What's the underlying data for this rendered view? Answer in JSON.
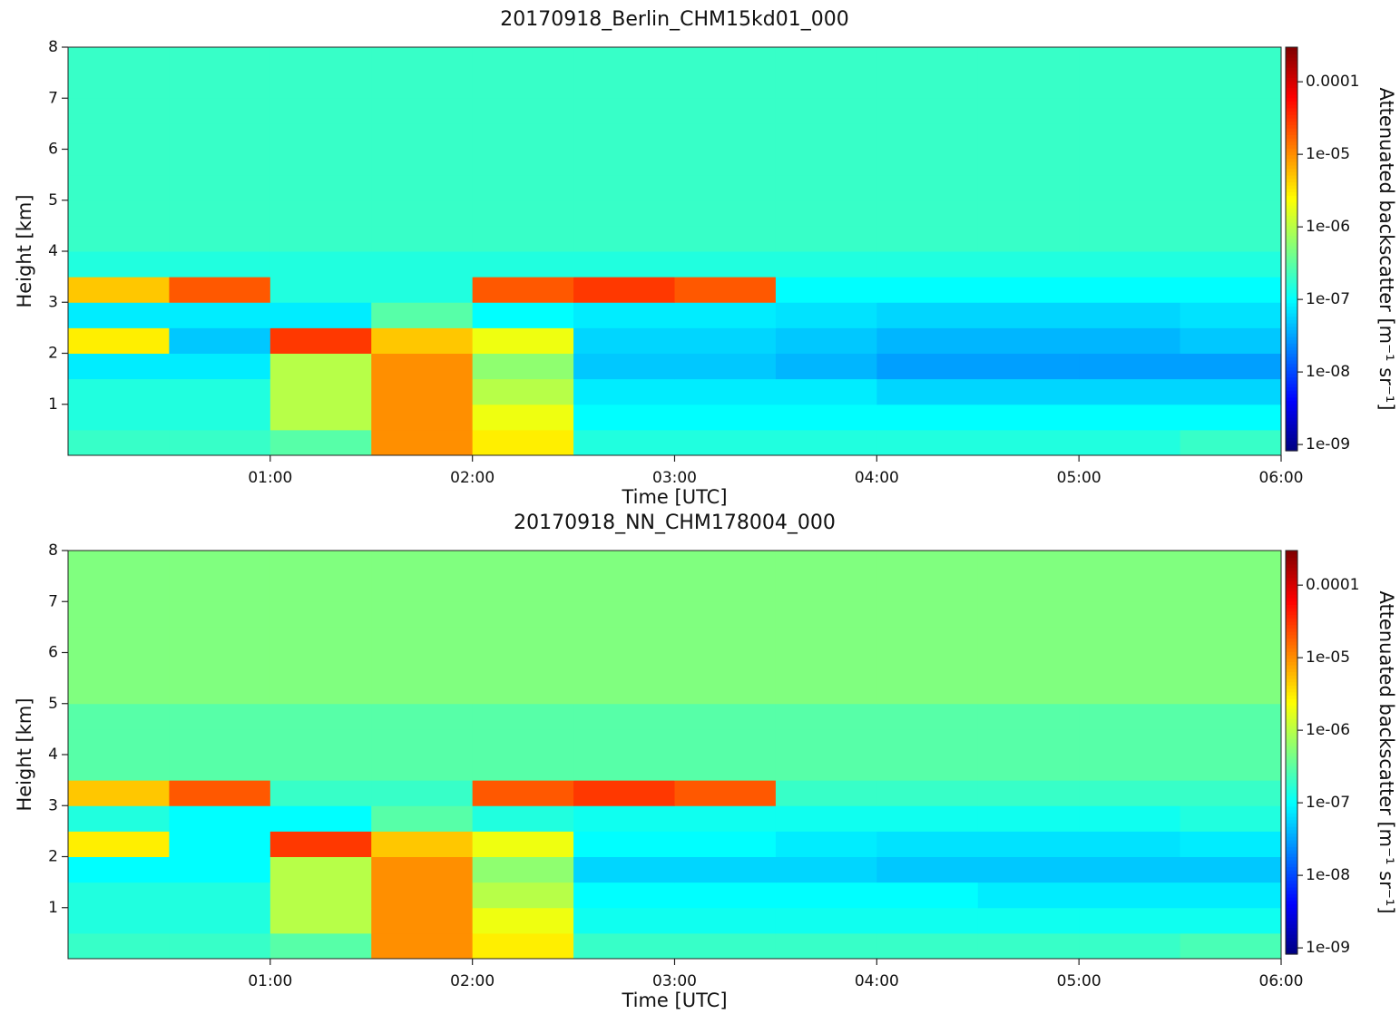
{
  "chart_data": [
    {
      "type": "heatmap",
      "title": "20170918_Berlin_CHM15kd01_000",
      "xlabel": "Time [UTC]",
      "ylabel": "Height [km]",
      "colorbar_label": "Attenuated backscatter [m⁻¹ sr⁻¹]",
      "colormap": "jet",
      "color_scale": "log",
      "xbins": [
        0,
        0.5,
        1,
        1.5,
        2,
        2.5,
        3,
        3.5,
        4,
        4.5,
        5,
        5.5,
        6
      ],
      "ybins": [
        0,
        0.5,
        1,
        1.5,
        2,
        2.5,
        3,
        3.5,
        4,
        4.5,
        5,
        5.5,
        6,
        6.5,
        7,
        7.5,
        8
      ],
      "values": [
        [
          2e-07,
          2e-07,
          3e-07,
          1e-05,
          3e-06,
          1.5e-07,
          1.5e-07,
          1.5e-07,
          1.5e-07,
          1.5e-07,
          1.5e-07,
          2e-07
        ],
        [
          1.5e-07,
          1.5e-07,
          1e-06,
          1e-05,
          2e-06,
          1e-07,
          1e-07,
          1e-07,
          1e-07,
          1e-07,
          1e-07,
          1e-07
        ],
        [
          1.5e-07,
          1.5e-07,
          1e-06,
          1e-05,
          1e-06,
          8e-08,
          8e-08,
          8e-08,
          6e-08,
          6e-08,
          6e-08,
          6e-08
        ],
        [
          8e-08,
          8e-08,
          1e-06,
          1e-05,
          6e-07,
          5e-08,
          5e-08,
          4e-08,
          3e-08,
          3e-08,
          3e-08,
          3e-08
        ],
        [
          3e-06,
          5e-08,
          3e-05,
          5e-06,
          2e-06,
          6e-08,
          6e-08,
          5e-08,
          4e-08,
          4e-08,
          4e-08,
          5e-08
        ],
        [
          8e-08,
          8e-08,
          8e-08,
          3e-07,
          1e-07,
          8e-08,
          8e-08,
          7e-08,
          6e-08,
          6e-08,
          6e-08,
          7e-08
        ],
        [
          5e-06,
          2e-05,
          1.5e-07,
          1.5e-07,
          2e-05,
          3e-05,
          2e-05,
          1e-07,
          1e-07,
          1e-07,
          1e-07,
          1e-07
        ],
        [
          1.5e-07,
          1.5e-07,
          1.5e-07,
          1.5e-07,
          1.5e-07,
          1.5e-07,
          1.5e-07,
          1.5e-07,
          1.5e-07,
          1.5e-07,
          1.5e-07,
          1.5e-07
        ],
        [
          2e-07,
          2e-07,
          2e-07,
          2e-07,
          2e-07,
          2e-07,
          2e-07,
          2e-07,
          2e-07,
          2e-07,
          2e-07,
          2e-07
        ],
        [
          2e-07,
          2e-07,
          2e-07,
          2e-07,
          2e-07,
          2e-07,
          2e-07,
          2e-07,
          2e-07,
          2e-07,
          2e-07,
          2e-07
        ],
        [
          2e-07,
          2e-07,
          2e-07,
          2e-07,
          2e-07,
          2e-07,
          2e-07,
          2e-07,
          2e-07,
          2e-07,
          2e-07,
          2e-07
        ],
        [
          2e-07,
          2e-07,
          2e-07,
          2e-07,
          2e-07,
          2e-07,
          2e-07,
          2e-07,
          2e-07,
          2e-07,
          2e-07,
          2e-07
        ],
        [
          2e-07,
          2e-07,
          2e-07,
          2e-07,
          2e-07,
          2e-07,
          2e-07,
          2e-07,
          2e-07,
          2e-07,
          2e-07,
          2e-07
        ],
        [
          2e-07,
          2e-07,
          2e-07,
          2e-07,
          2e-07,
          2e-07,
          2e-07,
          2e-07,
          2e-07,
          2e-07,
          2e-07,
          2e-07
        ],
        [
          2e-07,
          2e-07,
          2e-07,
          2e-07,
          2e-07,
          2e-07,
          2e-07,
          2e-07,
          2e-07,
          2e-07,
          2e-07,
          2e-07
        ],
        [
          2e-07,
          2e-07,
          2e-07,
          2e-07,
          2e-07,
          2e-07,
          2e-07,
          2e-07,
          2e-07,
          2e-07,
          2e-07,
          2e-07
        ]
      ],
      "xlim": [
        0,
        6
      ],
      "ylim": [
        0,
        8
      ],
      "xticks": [
        {
          "value": 1,
          "label": "01:00"
        },
        {
          "value": 2,
          "label": "02:00"
        },
        {
          "value": 3,
          "label": "03:00"
        },
        {
          "value": 4,
          "label": "04:00"
        },
        {
          "value": 5,
          "label": "05:00"
        },
        {
          "value": 6,
          "label": "06:00"
        }
      ],
      "yticks": [
        1,
        2,
        3,
        4,
        5,
        6,
        7,
        8
      ],
      "clim": [
        8.2e-10,
        0.0003
      ],
      "cticks": [
        0.0001,
        {
          "value": 1e-05,
          "label": "1e-05"
        },
        {
          "value": 1e-06,
          "label": "1e-06"
        },
        {
          "value": 1e-07,
          "label": "1e-07"
        },
        {
          "value": 1e-08,
          "label": "1e-08"
        },
        {
          "value": 1e-09,
          "label": "1e-09"
        }
      ]
    },
    {
      "type": "heatmap",
      "title": "20170918_NN_CHM178004_000",
      "xlabel": "Time [UTC]",
      "ylabel": "Height [km]",
      "colorbar_label": "Attenuated backscatter [m⁻¹ sr⁻¹]",
      "colormap": "jet",
      "color_scale": "log",
      "xbins": [
        0,
        0.5,
        1,
        1.5,
        2,
        2.5,
        3,
        3.5,
        4,
        4.5,
        5,
        5.5,
        6
      ],
      "ybins": [
        0,
        0.5,
        1,
        1.5,
        2,
        2.5,
        3,
        3.5,
        4,
        4.5,
        5,
        5.5,
        6,
        6.5,
        7,
        7.5,
        8
      ],
      "values": [
        [
          2e-07,
          2e-07,
          3e-07,
          1e-05,
          3e-06,
          2e-07,
          2e-07,
          2e-07,
          2e-07,
          2e-07,
          2e-07,
          2.5e-07
        ],
        [
          1.5e-07,
          1.5e-07,
          1e-06,
          1e-05,
          2e-06,
          1.2e-07,
          1.2e-07,
          1.2e-07,
          1.2e-07,
          1.2e-07,
          1.2e-07,
          1.2e-07
        ],
        [
          1.5e-07,
          1.5e-07,
          1e-06,
          1e-05,
          1e-06,
          1e-07,
          1e-07,
          1e-07,
          1e-07,
          8e-08,
          8e-08,
          8e-08
        ],
        [
          1e-07,
          1e-07,
          1e-06,
          1e-05,
          6e-07,
          6e-08,
          6e-08,
          6e-08,
          5e-08,
          5e-08,
          5e-08,
          5e-08
        ],
        [
          3e-06,
          1e-07,
          3e-05,
          5e-06,
          2e-06,
          1e-07,
          1e-07,
          8e-08,
          7e-08,
          7e-08,
          7e-08,
          8e-08
        ],
        [
          1.5e-07,
          1e-07,
          1e-07,
          3e-07,
          1.5e-07,
          1.2e-07,
          1.2e-07,
          1.2e-07,
          1.2e-07,
          1.2e-07,
          1.2e-07,
          1.5e-07
        ],
        [
          5e-06,
          2e-05,
          2e-07,
          2e-07,
          2e-05,
          3e-05,
          2e-05,
          2e-07,
          2e-07,
          2e-07,
          2e-07,
          2e-07
        ],
        [
          3e-07,
          3e-07,
          3e-07,
          3e-07,
          3e-07,
          3e-07,
          3e-07,
          3e-07,
          3e-07,
          3e-07,
          3e-07,
          3e-07
        ],
        [
          3e-07,
          3e-07,
          3e-07,
          3e-07,
          3e-07,
          3e-07,
          3e-07,
          3e-07,
          3e-07,
          3e-07,
          3e-07,
          3e-07
        ],
        [
          3e-07,
          3e-07,
          3e-07,
          3e-07,
          3e-07,
          3e-07,
          3e-07,
          3e-07,
          3e-07,
          3e-07,
          3e-07,
          3e-07
        ],
        [
          5e-07,
          5e-07,
          5e-07,
          5e-07,
          5e-07,
          5e-07,
          5e-07,
          5e-07,
          5e-07,
          5e-07,
          5e-07,
          5e-07
        ],
        [
          5e-07,
          5e-07,
          5e-07,
          5e-07,
          5e-07,
          5e-07,
          5e-07,
          5e-07,
          5e-07,
          5e-07,
          5e-07,
          5e-07
        ],
        [
          5e-07,
          5e-07,
          5e-07,
          5e-07,
          5e-07,
          5e-07,
          5e-07,
          5e-07,
          5e-07,
          5e-07,
          5e-07,
          5e-07
        ],
        [
          5e-07,
          5e-07,
          5e-07,
          5e-07,
          5e-07,
          5e-07,
          5e-07,
          5e-07,
          5e-07,
          5e-07,
          5e-07,
          5e-07
        ],
        [
          5e-07,
          5e-07,
          5e-07,
          5e-07,
          5e-07,
          5e-07,
          5e-07,
          5e-07,
          5e-07,
          5e-07,
          5e-07,
          5e-07
        ],
        [
          5e-07,
          5e-07,
          5e-07,
          5e-07,
          5e-07,
          5e-07,
          5e-07,
          5e-07,
          5e-07,
          5e-07,
          5e-07,
          5e-07
        ]
      ],
      "xlim": [
        0,
        6
      ],
      "ylim": [
        0,
        8
      ],
      "xticks": [
        {
          "value": 1,
          "label": "01:00"
        },
        {
          "value": 2,
          "label": "02:00"
        },
        {
          "value": 3,
          "label": "03:00"
        },
        {
          "value": 4,
          "label": "04:00"
        },
        {
          "value": 5,
          "label": "05:00"
        },
        {
          "value": 6,
          "label": "06:00"
        }
      ],
      "yticks": [
        1,
        2,
        3,
        4,
        5,
        6,
        7,
        8
      ],
      "clim": [
        8.2e-10,
        0.0003
      ],
      "cticks": [
        0.0001,
        {
          "value": 1e-05,
          "label": "1e-05"
        },
        {
          "value": 1e-06,
          "label": "1e-06"
        },
        {
          "value": 1e-07,
          "label": "1e-07"
        },
        {
          "value": 1e-08,
          "label": "1e-08"
        },
        {
          "value": 1e-09,
          "label": "1e-09"
        }
      ]
    }
  ]
}
